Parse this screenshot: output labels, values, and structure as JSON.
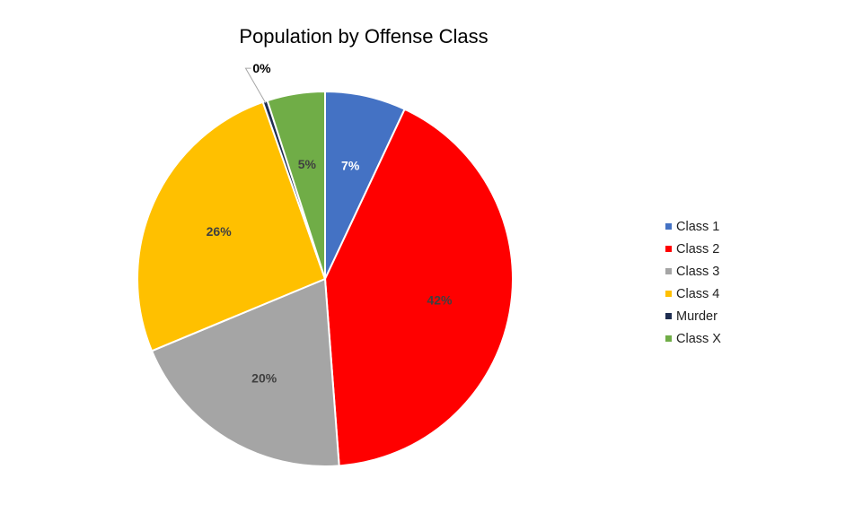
{
  "chart_data": {
    "type": "pie",
    "title": "Population by Offense Class",
    "slices": [
      {
        "name": "Class 1",
        "value": 7,
        "label": "7%",
        "color": "#4472C4",
        "label_color": "#ffffff"
      },
      {
        "name": "Class 2",
        "value": 42,
        "label": "42%",
        "color": "#FF0000",
        "label_color": "#404040"
      },
      {
        "name": "Class 3",
        "value": 20,
        "label": "20%",
        "color": "#A5A5A5",
        "label_color": "#404040"
      },
      {
        "name": "Class 4",
        "value": 26,
        "label": "26%",
        "color": "#FFC000",
        "label_color": "#404040"
      },
      {
        "name": "Murder",
        "value": 0.4,
        "label": "0%",
        "color": "#1F2D50",
        "label_color": "#000000"
      },
      {
        "name": "Class X",
        "value": 5,
        "label": "5%",
        "color": "#70AD47",
        "label_color": "#404040"
      }
    ],
    "legend_position": "right",
    "start_angle": "12 o'clock",
    "direction": "clockwise"
  }
}
